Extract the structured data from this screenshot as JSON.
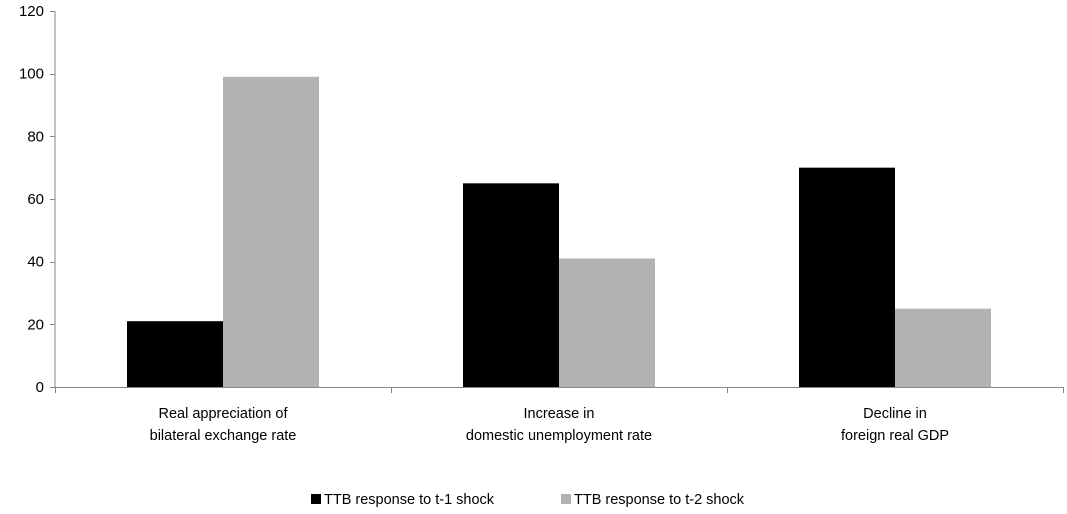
{
  "chart_data": {
    "type": "bar",
    "categories": [
      [
        "Real appreciation of",
        "bilateral exchange rate"
      ],
      [
        "Increase in",
        "domestic unemployment rate"
      ],
      [
        "Decline in",
        "foreign real GDP"
      ]
    ],
    "series": [
      {
        "name": "TTB response to t-1 shock",
        "color": "#000000",
        "values": [
          21,
          65,
          70
        ]
      },
      {
        "name": "TTB response to t-2 shock",
        "color": "#b2b2b2",
        "values": [
          99,
          41,
          25
        ]
      }
    ],
    "ylim": [
      0,
      120
    ],
    "yticks": [
      0,
      20,
      40,
      60,
      80,
      100,
      120
    ],
    "title": "",
    "xlabel": "",
    "ylabel": "",
    "grid": false,
    "legend_position": "bottom"
  }
}
